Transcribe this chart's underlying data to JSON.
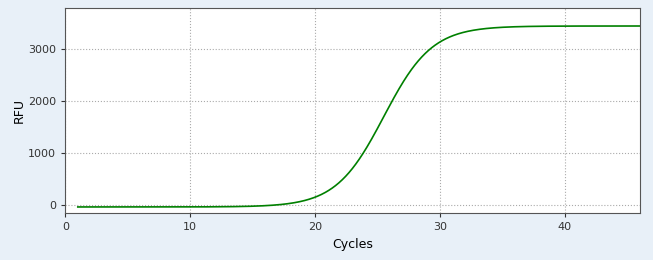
{
  "title": "",
  "xlabel": "Cycles",
  "ylabel": "RFU",
  "line_color": "#008000",
  "line_width": 1.2,
  "background_color": "#e8f0f8",
  "plot_bg_color": "#ffffff",
  "xlim": [
    0,
    46
  ],
  "ylim": [
    -150,
    3800
  ],
  "xticks": [
    0,
    10,
    20,
    30,
    40
  ],
  "yticks": [
    0,
    1000,
    2000,
    3000
  ],
  "grid_color": "#aaaaaa",
  "sigmoid_L": 3480,
  "sigmoid_k": 0.52,
  "sigmoid_x0": 25.5,
  "sigmoid_baseline": -30,
  "x_start": 1,
  "x_end": 46
}
